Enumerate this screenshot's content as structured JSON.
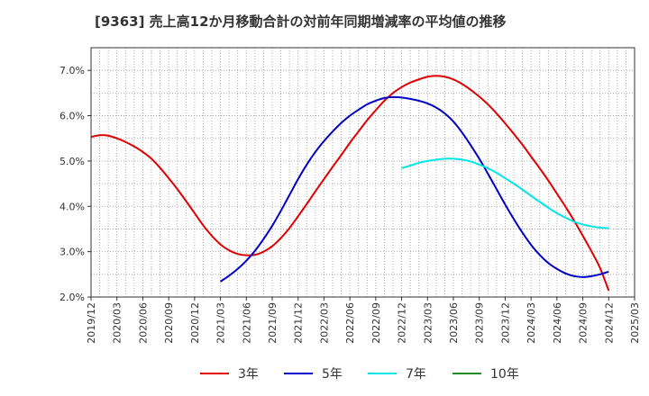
{
  "chart_data": {
    "type": "line",
    "title": "[9363]  売上高12か月移動合計の対前年同期増減率の平均値の推移",
    "xlabel": "",
    "ylabel": "",
    "ylim": [
      2.0,
      7.5
    ],
    "y_ticks": [
      2.0,
      3.0,
      4.0,
      5.0,
      6.0,
      7.0
    ],
    "y_tick_labels": [
      "2.0%",
      "3.0%",
      "4.0%",
      "5.0%",
      "6.0%",
      "7.0%"
    ],
    "x_tick_labels": [
      "2019/12",
      "2020/03",
      "2020/06",
      "2020/09",
      "2020/12",
      "2021/03",
      "2021/06",
      "2021/09",
      "2021/12",
      "2022/03",
      "2022/06",
      "2022/09",
      "2022/12",
      "2023/03",
      "2023/06",
      "2023/09",
      "2023/12",
      "2024/03",
      "2024/06",
      "2024/09",
      "2024/12",
      "2025/03"
    ],
    "grid": true,
    "legend_position": "bottom",
    "series": [
      {
        "name": "3年",
        "color": "#e00000",
        "x": [
          "2019/12",
          "2020/01",
          "2020/02",
          "2020/03",
          "2020/04",
          "2020/05",
          "2020/06",
          "2020/07",
          "2020/08",
          "2020/09",
          "2020/10",
          "2020/11",
          "2020/12",
          "2021/01",
          "2021/02",
          "2021/03",
          "2021/04",
          "2021/05",
          "2021/06",
          "2021/07",
          "2021/08",
          "2021/09",
          "2021/10",
          "2021/11",
          "2021/12",
          "2022/01",
          "2022/02",
          "2022/03",
          "2022/04",
          "2022/05",
          "2022/06",
          "2022/07",
          "2022/08",
          "2022/09",
          "2022/10",
          "2022/11",
          "2022/12",
          "2023/01",
          "2023/02",
          "2023/03",
          "2023/04",
          "2023/05",
          "2023/06",
          "2023/07",
          "2023/08",
          "2023/09",
          "2023/10",
          "2023/11",
          "2023/12",
          "2024/01",
          "2024/02",
          "2024/03",
          "2024/04",
          "2024/05",
          "2024/06",
          "2024/07",
          "2024/08",
          "2024/09",
          "2024/10",
          "2024/11",
          "2024/12"
        ],
        "values": [
          5.53,
          5.57,
          5.56,
          5.5,
          5.42,
          5.32,
          5.2,
          5.05,
          4.85,
          4.62,
          4.38,
          4.12,
          3.85,
          3.58,
          3.35,
          3.16,
          3.03,
          2.95,
          2.92,
          2.93,
          3.0,
          3.12,
          3.3,
          3.52,
          3.78,
          4.05,
          4.33,
          4.6,
          4.87,
          5.13,
          5.4,
          5.65,
          5.9,
          6.12,
          6.33,
          6.5,
          6.63,
          6.73,
          6.8,
          6.86,
          6.88,
          6.86,
          6.8,
          6.7,
          6.57,
          6.42,
          6.25,
          6.05,
          5.83,
          5.6,
          5.36,
          5.1,
          4.84,
          4.57,
          4.28,
          3.99,
          3.68,
          3.35,
          3.01,
          2.64,
          2.14
        ]
      },
      {
        "name": "5年",
        "color": "#0000c8",
        "x": [
          "2021/03",
          "2021/04",
          "2021/05",
          "2021/06",
          "2021/07",
          "2021/08",
          "2021/09",
          "2021/10",
          "2021/11",
          "2021/12",
          "2022/01",
          "2022/02",
          "2022/03",
          "2022/04",
          "2022/05",
          "2022/06",
          "2022/07",
          "2022/08",
          "2022/09",
          "2022/10",
          "2022/11",
          "2022/12",
          "2023/01",
          "2023/02",
          "2023/03",
          "2023/04",
          "2023/05",
          "2023/06",
          "2023/07",
          "2023/08",
          "2023/09",
          "2023/10",
          "2023/11",
          "2023/12",
          "2024/01",
          "2024/02",
          "2024/03",
          "2024/04",
          "2024/05",
          "2024/06",
          "2024/07",
          "2024/08",
          "2024/09",
          "2024/10",
          "2024/11",
          "2024/12"
        ],
        "values": [
          2.34,
          2.47,
          2.62,
          2.8,
          3.02,
          3.28,
          3.57,
          3.9,
          4.25,
          4.6,
          4.92,
          5.2,
          5.44,
          5.65,
          5.84,
          6.0,
          6.13,
          6.25,
          6.33,
          6.39,
          6.41,
          6.4,
          6.37,
          6.33,
          6.27,
          6.18,
          6.05,
          5.87,
          5.63,
          5.35,
          5.05,
          4.72,
          4.38,
          4.04,
          3.72,
          3.42,
          3.15,
          2.93,
          2.75,
          2.62,
          2.52,
          2.46,
          2.44,
          2.46,
          2.5,
          2.56
        ]
      },
      {
        "name": "7年",
        "color": "#00e6e6",
        "x": [
          "2022/12",
          "2023/01",
          "2023/02",
          "2023/03",
          "2023/04",
          "2023/05",
          "2023/06",
          "2023/07",
          "2023/08",
          "2023/09",
          "2023/10",
          "2023/11",
          "2023/12",
          "2024/01",
          "2024/02",
          "2024/03",
          "2024/04",
          "2024/05",
          "2024/06",
          "2024/07",
          "2024/08",
          "2024/09",
          "2024/10",
          "2024/11",
          "2024/12"
        ],
        "values": [
          4.84,
          4.9,
          4.96,
          5.0,
          5.03,
          5.05,
          5.05,
          5.03,
          4.99,
          4.92,
          4.84,
          4.74,
          4.62,
          4.5,
          4.37,
          4.23,
          4.1,
          3.97,
          3.85,
          3.75,
          3.66,
          3.6,
          3.56,
          3.53,
          3.52
        ]
      },
      {
        "name": "10年",
        "color": "#228b22",
        "x": [],
        "values": []
      }
    ]
  }
}
